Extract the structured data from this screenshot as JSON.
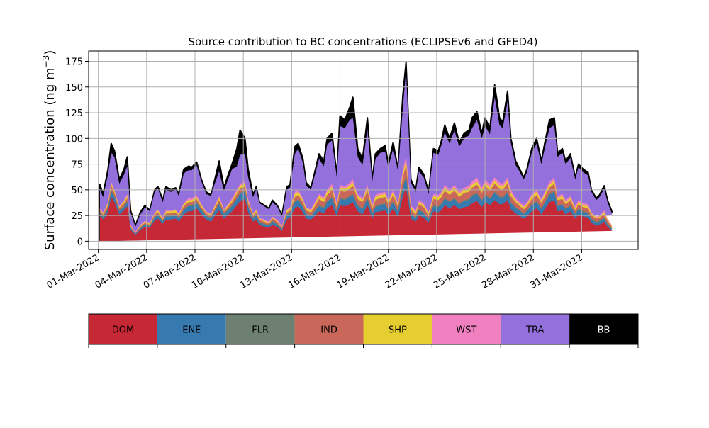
{
  "chart_data": {
    "type": "area",
    "title": "Source contribution to BC concentrations (ECLIPSEv6 and GFED4)",
    "ylabel": "Surface concentration (ng m",
    "ylabel_sup": "−3",
    "ylabel_close": ")",
    "ylim": [
      -8,
      185
    ],
    "yticks": [
      0,
      25,
      50,
      75,
      100,
      125,
      150,
      175
    ],
    "xlim": [
      -0.6,
      33.5
    ],
    "x_start": "2022-03-01",
    "xtick_labels": [
      "01-Mar-2022",
      "04-Mar-2022",
      "07-Mar-2022",
      "10-Mar-2022",
      "13-Mar-2022",
      "16-Mar-2022",
      "19-Mar-2022",
      "22-Mar-2022",
      "25-Mar-2022",
      "28-Mar-2022",
      "31-Mar-2022"
    ],
    "grid": true,
    "stacked": true,
    "series": [
      {
        "name": "DOM",
        "color": "#c62836"
      },
      {
        "name": "ENE",
        "color": "#377ab0"
      },
      {
        "name": "FLR",
        "color": "#6e8070"
      },
      {
        "name": "IND",
        "color": "#c8675a"
      },
      {
        "name": "SHP",
        "color": "#e6cd30"
      },
      {
        "name": "WST",
        "color": "#f080c0"
      },
      {
        "name": "TRA",
        "color": "#9370db"
      },
      {
        "name": "BB",
        "color": "#000000"
      }
    ],
    "x": [
      0.1,
      0.3,
      0.6,
      0.8,
      1.0,
      1.3,
      1.6,
      1.8,
      2.0,
      2.3,
      2.6,
      2.9,
      3.2,
      3.5,
      3.7,
      4.0,
      4.2,
      4.5,
      4.8,
      5.0,
      5.3,
      5.6,
      5.8,
      6.1,
      6.4,
      6.7,
      7.0,
      7.2,
      7.5,
      7.8,
      8.0,
      8.3,
      8.6,
      8.8,
      9.1,
      9.3,
      9.6,
      9.8,
      10.0,
      10.3,
      10.6,
      10.8,
      11.1,
      11.4,
      11.7,
      11.9,
      12.2,
      12.4,
      12.7,
      12.9,
      13.2,
      13.4,
      13.7,
      14.0,
      14.2,
      14.5,
      14.8,
      15.0,
      15.3,
      15.6,
      15.8,
      16.1,
      16.4,
      16.7,
      17.0,
      17.2,
      17.5,
      17.8,
      18.0,
      18.3,
      18.6,
      18.9,
      19.1,
      19.4,
      19.7,
      19.9,
      20.2,
      20.5,
      20.8,
      21.1,
      21.3,
      21.5,
      21.8,
      22.1,
      22.4,
      22.7,
      23.0,
      23.2,
      23.5,
      23.8,
      24.0,
      24.3,
      24.6,
      24.9,
      25.1,
      25.4,
      25.6,
      25.9,
      26.1,
      26.4,
      26.6,
      26.9,
      27.2,
      27.5,
      27.7,
      28.0,
      28.3,
      28.5,
      28.8,
      29.0,
      29.3,
      29.6,
      29.8,
      30.1,
      30.4,
      30.6,
      30.9,
      31.1,
      31.4,
      31.6,
      31.9,
      32.2,
      32.4,
      32.6,
      32.8,
      33.1
    ],
    "total": [
      55,
      46,
      70,
      95,
      88,
      60,
      70,
      82,
      30,
      15,
      28,
      35,
      30,
      50,
      53,
      40,
      53,
      50,
      52,
      46,
      70,
      73,
      72,
      77,
      60,
      48,
      45,
      58,
      78,
      52,
      62,
      75,
      90,
      108,
      100,
      70,
      45,
      53,
      38,
      35,
      32,
      40,
      35,
      25,
      53,
      55,
      92,
      95,
      80,
      57,
      52,
      65,
      85,
      78,
      100,
      105,
      65,
      122,
      118,
      130,
      140,
      90,
      80,
      120,
      60,
      85,
      90,
      93,
      75,
      96,
      70,
      142,
      174,
      60,
      50,
      72,
      65,
      48,
      90,
      88,
      98,
      113,
      100,
      115,
      96,
      105,
      108,
      120,
      126,
      105,
      120,
      110,
      152,
      120,
      116,
      146,
      100,
      78,
      72,
      62,
      70,
      90,
      100,
      78,
      95,
      118,
      120,
      86,
      90,
      78,
      85,
      62,
      75,
      70,
      67,
      50,
      42,
      45,
      54,
      40,
      28
    ],
    "tra": [
      50,
      43,
      65,
      86,
      82,
      56,
      65,
      73,
      28,
      14,
      26,
      33,
      29,
      48,
      51,
      38,
      50,
      48,
      50,
      44,
      66,
      69,
      69,
      74,
      58,
      46,
      44,
      55,
      68,
      49,
      58,
      70,
      73,
      84,
      85,
      62,
      43,
      50,
      37,
      34,
      31,
      38,
      34,
      24,
      50,
      52,
      85,
      90,
      76,
      54,
      50,
      62,
      80,
      73,
      94,
      98,
      62,
      112,
      110,
      118,
      120,
      82,
      74,
      109,
      58,
      80,
      86,
      87,
      72,
      90,
      68,
      130,
      166,
      57,
      48,
      68,
      62,
      46,
      86,
      84,
      94,
      106,
      95,
      108,
      92,
      100,
      103,
      110,
      118,
      100,
      112,
      104,
      140,
      113,
      110,
      136,
      96,
      74,
      69,
      60,
      67,
      86,
      95,
      75,
      90,
      110,
      113,
      82,
      86,
      75,
      81,
      60,
      72,
      67,
      64,
      48,
      40,
      43,
      51,
      38,
      26
    ],
    "wst": [
      32,
      28,
      38,
      58,
      50,
      34,
      40,
      46,
      16,
      9,
      16,
      20,
      18,
      28,
      31,
      23,
      30,
      30,
      31,
      27,
      37,
      42,
      42,
      45,
      36,
      29,
      27,
      34,
      44,
      31,
      35,
      42,
      50,
      56,
      58,
      41,
      27,
      31,
      23,
      21,
      19,
      24,
      21,
      15,
      31,
      33,
      48,
      50,
      42,
      33,
      31,
      37,
      46,
      43,
      50,
      56,
      37,
      55,
      53,
      57,
      60,
      46,
      42,
      55,
      35,
      45,
      47,
      48,
      40,
      50,
      37,
      70,
      83,
      35,
      30,
      40,
      37,
      28,
      46,
      45,
      48,
      55,
      50,
      55,
      48,
      52,
      54,
      58,
      62,
      52,
      60,
      55,
      62,
      57,
      56,
      62,
      50,
      42,
      39,
      35,
      38,
      46,
      50,
      41,
      48,
      58,
      62,
      44,
      46,
      40,
      44,
      34,
      40,
      37,
      36,
      28,
      24,
      25,
      30,
      22,
      15
    ],
    "shp": [
      31,
      27,
      37,
      56,
      49,
      33,
      39,
      44,
      15,
      8,
      15,
      19,
      17,
      27,
      30,
      22,
      29,
      29,
      30,
      26,
      36,
      40,
      40,
      43,
      35,
      28,
      26,
      33,
      42,
      30,
      34,
      40,
      48,
      54,
      56,
      39,
      26,
      30,
      22,
      20,
      18,
      23,
      20,
      14,
      30,
      32,
      46,
      48,
      40,
      32,
      30,
      35,
      44,
      41,
      48,
      53,
      35,
      52,
      51,
      54,
      57,
      44,
      40,
      52,
      33,
      43,
      45,
      46,
      38,
      48,
      35,
      66,
      78,
      33,
      28,
      38,
      35,
      27,
      44,
      43,
      46,
      52,
      48,
      52,
      46,
      50,
      51,
      55,
      58,
      50,
      57,
      52,
      59,
      54,
      53,
      59,
      47,
      40,
      37,
      33,
      36,
      44,
      48,
      39,
      46,
      55,
      59,
      42,
      44,
      38,
      42,
      32,
      38,
      35,
      34,
      27,
      23,
      24,
      28,
      21,
      14
    ],
    "ind": [
      30,
      26,
      35,
      54,
      47,
      32,
      37,
      42,
      14,
      8,
      14,
      18,
      16,
      26,
      28,
      21,
      27,
      27,
      28,
      25,
      34,
      38,
      38,
      41,
      33,
      27,
      25,
      31,
      40,
      29,
      32,
      38,
      46,
      51,
      53,
      37,
      25,
      28,
      21,
      19,
      17,
      22,
      19,
      13,
      28,
      30,
      43,
      45,
      38,
      30,
      28,
      33,
      41,
      38,
      45,
      50,
      33,
      49,
      48,
      51,
      54,
      41,
      38,
      49,
      31,
      40,
      42,
      43,
      36,
      45,
      33,
      62,
      74,
      31,
      26,
      36,
      33,
      25,
      41,
      40,
      43,
      49,
      45,
      49,
      43,
      47,
      48,
      52,
      55,
      47,
      54,
      49,
      56,
      51,
      50,
      56,
      44,
      38,
      35,
      31,
      34,
      41,
      45,
      37,
      43,
      52,
      56,
      40,
      41,
      36,
      40,
      30,
      36,
      33,
      32,
      25,
      22,
      23,
      26,
      20,
      13
    ],
    "flr": [
      28,
      24,
      32,
      50,
      44,
      30,
      34,
      39,
      13,
      7,
      13,
      17,
      15,
      24,
      26,
      20,
      25,
      25,
      26,
      23,
      31,
      35,
      35,
      38,
      31,
      25,
      23,
      29,
      37,
      27,
      30,
      35,
      42,
      47,
      49,
      34,
      23,
      26,
      19,
      17,
      16,
      20,
      17,
      12,
      26,
      28,
      39,
      41,
      34,
      27,
      25,
      29,
      35,
      33,
      39,
      43,
      29,
      42,
      41,
      44,
      46,
      35,
      32,
      42,
      27,
      34,
      36,
      37,
      31,
      39,
      29,
      53,
      64,
      27,
      23,
      31,
      28,
      22,
      35,
      34,
      37,
      42,
      39,
      42,
      37,
      40,
      41,
      45,
      47,
      40,
      46,
      42,
      48,
      44,
      43,
      48,
      38,
      33,
      31,
      27,
      30,
      36,
      39,
      32,
      38,
      46,
      49,
      35,
      36,
      32,
      35,
      27,
      32,
      29,
      28,
      22,
      19,
      20,
      23,
      17,
      12
    ],
    "ene": [
      27,
      23,
      31,
      48,
      43,
      29,
      33,
      38,
      13,
      7,
      12,
      16,
      14,
      23,
      25,
      19,
      24,
      24,
      25,
      22,
      30,
      34,
      34,
      37,
      30,
      24,
      22,
      28,
      36,
      26,
      29,
      34,
      41,
      46,
      48,
      33,
      22,
      25,
      18,
      16,
      15,
      19,
      16,
      11,
      25,
      27,
      38,
      40,
      33,
      26,
      24,
      28,
      34,
      32,
      38,
      42,
      28,
      41,
      40,
      43,
      45,
      34,
      31,
      41,
      26,
      33,
      35,
      36,
      30,
      38,
      28,
      52,
      62,
      26,
      22,
      30,
      27,
      21,
      34,
      33,
      36,
      41,
      38,
      41,
      36,
      39,
      40,
      44,
      46,
      39,
      45,
      41,
      47,
      43,
      42,
      47,
      37,
      32,
      30,
      26,
      29,
      35,
      38,
      31,
      37,
      45,
      48,
      34,
      35,
      31,
      34,
      26,
      31,
      28,
      27,
      21,
      18,
      19,
      22,
      16,
      11
    ],
    "dom": [
      25,
      21,
      28,
      43,
      38,
      26,
      30,
      34,
      11,
      6,
      11,
      14,
      13,
      20,
      22,
      17,
      21,
      21,
      22,
      19,
      26,
      29,
      29,
      32,
      26,
      21,
      19,
      24,
      30,
      22,
      25,
      29,
      35,
      39,
      41,
      28,
      19,
      21,
      16,
      14,
      13,
      16,
      14,
      10,
      21,
      23,
      32,
      34,
      28,
      22,
      21,
      24,
      29,
      27,
      32,
      35,
      24,
      35,
      34,
      36,
      38,
      29,
      26,
      35,
      22,
      28,
      29,
      30,
      25,
      32,
      23,
      44,
      52,
      22,
      19,
      25,
      23,
      18,
      29,
      28,
      30,
      35,
      32,
      35,
      31,
      33,
      34,
      37,
      39,
      33,
      38,
      35,
      40,
      36,
      36,
      40,
      31,
      27,
      25,
      22,
      24,
      29,
      32,
      26,
      31,
      38,
      40,
      29,
      30,
      26,
      29,
      22,
      26,
      24,
      23,
      18,
      15,
      16,
      19,
      14,
      10
    ]
  }
}
